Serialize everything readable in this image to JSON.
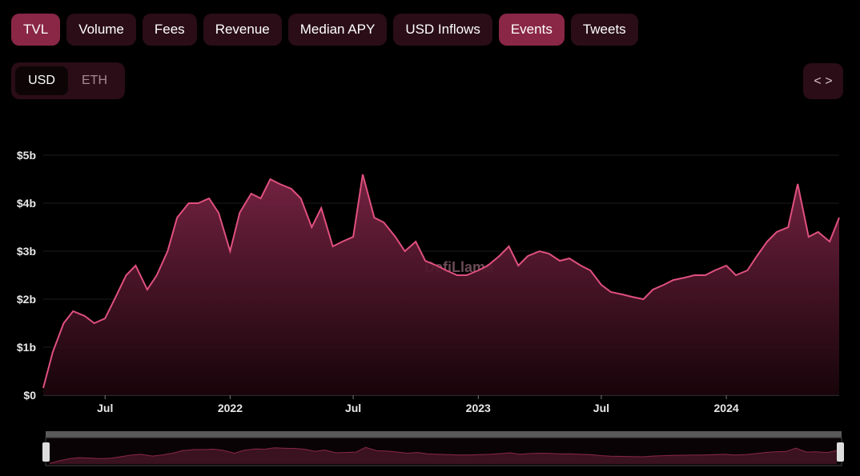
{
  "tabs": [
    {
      "label": "TVL",
      "active": true
    },
    {
      "label": "Volume",
      "active": false
    },
    {
      "label": "Fees",
      "active": false
    },
    {
      "label": "Revenue",
      "active": false
    },
    {
      "label": "Median APY",
      "active": false
    },
    {
      "label": "USD Inflows",
      "active": false
    },
    {
      "label": "Events",
      "active": true
    },
    {
      "label": "Tweets",
      "active": false
    }
  ],
  "currency_toggle": {
    "usd": "USD",
    "eth": "ETH",
    "selected": "USD"
  },
  "embed_icon": "code-icon",
  "watermark": "DefiLlama",
  "colors": {
    "accent": "#e0507e",
    "tab_bg": "#2a0d17",
    "tab_active": "#8a2747"
  },
  "chart_data": {
    "type": "area",
    "title": "",
    "xlabel": "",
    "ylabel": "",
    "y_unit": "USD",
    "ylim": [
      0,
      5000000000
    ],
    "yticks": [
      "$0",
      "$1b",
      "$2b",
      "$3b",
      "$4b",
      "$5b"
    ],
    "xticks": [
      "Jul",
      "2022",
      "Jul",
      "2023",
      "Jul",
      "2024"
    ],
    "grid": true,
    "x": [
      "2021-04-01",
      "2021-04-15",
      "2021-05-01",
      "2021-05-15",
      "2021-06-01",
      "2021-06-15",
      "2021-07-01",
      "2021-07-15",
      "2021-08-01",
      "2021-08-15",
      "2021-09-01",
      "2021-09-15",
      "2021-10-01",
      "2021-10-15",
      "2021-11-01",
      "2021-11-15",
      "2021-12-01",
      "2021-12-15",
      "2022-01-01",
      "2022-01-15",
      "2022-02-01",
      "2022-02-15",
      "2022-03-01",
      "2022-03-15",
      "2022-04-01",
      "2022-04-15",
      "2022-05-01",
      "2022-05-15",
      "2022-06-01",
      "2022-06-15",
      "2022-07-01",
      "2022-07-15",
      "2022-08-01",
      "2022-08-15",
      "2022-09-01",
      "2022-09-15",
      "2022-10-01",
      "2022-10-15",
      "2022-11-01",
      "2022-11-15",
      "2022-12-01",
      "2022-12-15",
      "2023-01-01",
      "2023-01-15",
      "2023-02-01",
      "2023-02-15",
      "2023-03-01",
      "2023-03-15",
      "2023-04-01",
      "2023-04-15",
      "2023-05-01",
      "2023-05-15",
      "2023-06-01",
      "2023-06-15",
      "2023-07-01",
      "2023-07-15",
      "2023-08-01",
      "2023-08-15",
      "2023-09-01",
      "2023-09-15",
      "2023-10-01",
      "2023-10-15",
      "2023-11-01",
      "2023-11-15",
      "2023-12-01",
      "2023-12-15",
      "2024-01-01",
      "2024-01-15",
      "2024-02-01",
      "2024-02-15",
      "2024-03-01",
      "2024-03-15",
      "2024-04-01",
      "2024-04-15",
      "2024-05-01",
      "2024-05-15",
      "2024-06-01",
      "2024-06-15"
    ],
    "series": [
      {
        "values": [
          150000000,
          900000000,
          1500000000,
          1750000000,
          1650000000,
          1500000000,
          1600000000,
          2000000000,
          2500000000,
          2700000000,
          2200000000,
          2500000000,
          3000000000,
          3700000000,
          4000000000,
          4000000000,
          4100000000,
          3800000000,
          3000000000,
          3800000000,
          4200000000,
          4100000000,
          4500000000,
          4400000000,
          4300000000,
          4100000000,
          3500000000,
          3900000000,
          3100000000,
          3200000000,
          3300000000,
          4600000000,
          3700000000,
          3600000000,
          3300000000,
          3000000000,
          3200000000,
          2800000000,
          2700000000,
          2600000000,
          2500000000,
          2500000000,
          2600000000,
          2700000000,
          2900000000,
          3100000000,
          2700000000,
          2900000000,
          3000000000,
          2950000000,
          2800000000,
          2850000000,
          2700000000,
          2600000000,
          2300000000,
          2150000000,
          2100000000,
          2050000000,
          2000000000,
          2200000000,
          2300000000,
          2400000000,
          2450000000,
          2500000000,
          2500000000,
          2600000000,
          2700000000,
          2500000000,
          2600000000,
          2900000000,
          3200000000,
          3400000000,
          3500000000,
          4400000000,
          3300000000,
          3400000000,
          3200000000,
          3700000000
        ]
      }
    ]
  }
}
